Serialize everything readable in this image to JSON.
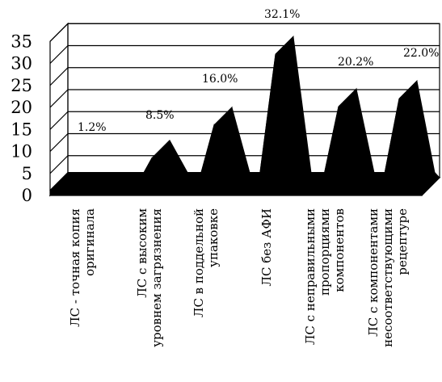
{
  "chart_data": {
    "type": "area",
    "title": "",
    "xlabel": "",
    "ylabel": "",
    "ylim": [
      0,
      35
    ],
    "yticks": [
      0,
      5,
      10,
      15,
      20,
      25,
      30,
      35
    ],
    "grid": true,
    "legend": "none",
    "three_d": true,
    "series_color": "#000000",
    "categories": [
      [
        "ЛС - точная копия",
        "оригинала"
      ],
      [
        "ЛС с высоким",
        "уровнем загрязнения"
      ],
      [
        "ЛС в поддельной",
        "упаковке"
      ],
      [
        "ЛС без АФИ"
      ],
      [
        "ЛС с неправильными",
        "пропорциями",
        "компонентов"
      ],
      [
        "ЛС с компонентами",
        "несоответствующими",
        "рецептуре"
      ]
    ],
    "values": [
      1.2,
      8.5,
      16.0,
      32.1,
      20.2,
      22.0
    ],
    "data_labels": [
      "1.2%",
      "8.5%",
      "16.0%",
      "32.1%",
      "20.2%",
      "22.0%"
    ]
  }
}
